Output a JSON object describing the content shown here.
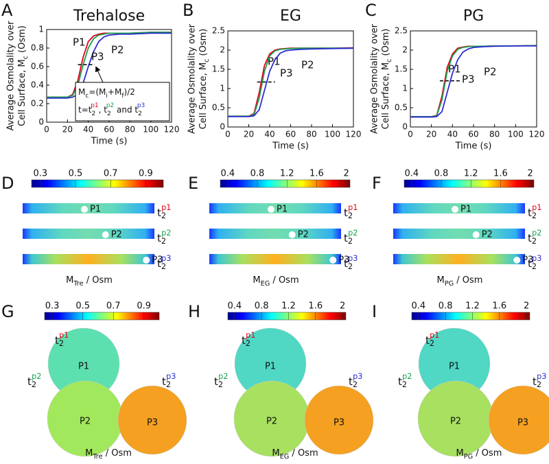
{
  "chart_data": [
    {
      "type": "line",
      "letter": "A",
      "title": "Trehalose",
      "y_label": [
        "Average Osmolality over",
        "Cell Surface, M",
        "c",
        " (Osm)"
      ],
      "x_label": "Time (s)",
      "x": [
        0,
        10,
        20,
        25,
        30,
        35,
        40,
        45,
        50,
        55,
        60,
        70,
        80,
        100,
        120
      ],
      "xlim": [
        0,
        120
      ],
      "xticks": [
        0,
        20,
        40,
        60,
        80,
        100,
        120
      ],
      "ylim": [
        0,
        1
      ],
      "yticks": [
        0,
        0.2,
        0.4,
        0.6,
        0.8,
        1
      ],
      "series": [
        {
          "name": "P1",
          "color": "#e2001a",
          "values": [
            0.27,
            0.27,
            0.27,
            0.3,
            0.45,
            0.7,
            0.87,
            0.93,
            0.95,
            0.96,
            0.96,
            0.96,
            0.96,
            0.97,
            0.97
          ]
        },
        {
          "name": "P2",
          "color": "#1aa050",
          "values": [
            0.27,
            0.27,
            0.27,
            0.29,
            0.4,
            0.62,
            0.8,
            0.9,
            0.94,
            0.95,
            0.96,
            0.96,
            0.96,
            0.97,
            0.97
          ]
        },
        {
          "name": "P3",
          "color": "#2b2bd0",
          "values": [
            0.26,
            0.26,
            0.26,
            0.27,
            0.3,
            0.42,
            0.6,
            0.76,
            0.87,
            0.92,
            0.94,
            0.95,
            0.95,
            0.96,
            0.96
          ]
        }
      ],
      "mid_line": {
        "x": [
          30,
          46
        ],
        "y": 0.62
      },
      "annotation": [
        [
          "M",
          "c",
          "=(M",
          "i",
          "+M",
          "f",
          ")/2"
        ],
        [
          "t=t",
          "2",
          "p1",
          ", t",
          "2",
          "p2",
          " and t",
          "2",
          "p3"
        ]
      ]
    },
    {
      "type": "line",
      "letter": "B",
      "title": "EG",
      "y_label": [
        "Average Osmolality over",
        "Cell Surface, M",
        "c",
        " (Osm)"
      ],
      "x_label": "Time (s)",
      "x": [
        0,
        10,
        20,
        25,
        30,
        35,
        40,
        45,
        50,
        55,
        60,
        70,
        80,
        100,
        120
      ],
      "xlim": [
        0,
        120
      ],
      "xticks": [
        0,
        20,
        40,
        60,
        80,
        100,
        120
      ],
      "ylim": [
        0,
        2.5
      ],
      "yticks": [
        0,
        0.5,
        1,
        1.5,
        2,
        2.5
      ],
      "series": [
        {
          "name": "P1",
          "color": "#e2001a",
          "values": [
            0.28,
            0.28,
            0.28,
            0.35,
            0.9,
            1.6,
            1.9,
            2.0,
            2.03,
            2.04,
            2.05,
            2.05,
            2.05,
            2.05,
            2.06
          ]
        },
        {
          "name": "P2",
          "color": "#1aa050",
          "values": [
            0.28,
            0.28,
            0.28,
            0.32,
            0.75,
            1.45,
            1.85,
            1.98,
            2.02,
            2.03,
            2.04,
            2.05,
            2.05,
            2.05,
            2.05
          ]
        },
        {
          "name": "P3",
          "color": "#2b2bd0",
          "values": [
            0.27,
            0.27,
            0.27,
            0.29,
            0.45,
            0.95,
            1.45,
            1.75,
            1.92,
            1.98,
            2.0,
            2.02,
            2.03,
            2.04,
            2.05
          ]
        }
      ],
      "mid_line": {
        "x": [
          28,
          45
        ],
        "y": 1.17
      }
    },
    {
      "type": "line",
      "letter": "C",
      "title": "PG",
      "y_label": [
        "Average Osmolality over",
        "Cell Surface, M",
        "c",
        " (Osm)"
      ],
      "x_label": "Time (s)",
      "x": [
        0,
        10,
        20,
        25,
        30,
        35,
        40,
        45,
        50,
        55,
        60,
        70,
        80,
        100,
        120
      ],
      "xlim": [
        0,
        120
      ],
      "xticks": [
        0,
        20,
        40,
        60,
        80,
        100,
        120
      ],
      "ylim": [
        0,
        2.5
      ],
      "yticks": [
        0,
        0.5,
        1,
        1.5,
        2,
        2.5
      ],
      "series": [
        {
          "name": "P1",
          "color": "#e2001a",
          "values": [
            0.27,
            0.27,
            0.27,
            0.3,
            0.8,
            1.55,
            1.9,
            2.05,
            2.08,
            2.1,
            2.1,
            2.1,
            2.11,
            2.11,
            2.12
          ]
        },
        {
          "name": "P2",
          "color": "#1aa050",
          "values": [
            0.27,
            0.27,
            0.27,
            0.29,
            0.7,
            1.45,
            1.85,
            2.02,
            2.07,
            2.09,
            2.1,
            2.1,
            2.11,
            2.11,
            2.12
          ]
        },
        {
          "name": "P3",
          "color": "#2b2bd0",
          "values": [
            0.26,
            0.26,
            0.26,
            0.27,
            0.4,
            0.9,
            1.4,
            1.75,
            1.95,
            2.03,
            2.07,
            2.09,
            2.1,
            2.11,
            2.11
          ]
        }
      ],
      "mid_line": {
        "x": [
          28,
          48
        ],
        "y": 1.2
      }
    }
  ],
  "strip_panels": [
    {
      "letter": "D",
      "colorbar": {
        "lim": [
          0.25,
          1.0
        ],
        "ticks": [
          0.3,
          0.5,
          0.7,
          0.9
        ]
      },
      "quantity": [
        "M",
        "Tre",
        " / Osm"
      ],
      "strips": [
        {
          "point": "P1",
          "time": [
            "t",
            "2",
            "p1"
          ]
        },
        {
          "point": "P2",
          "time": [
            "t",
            "2",
            "p2"
          ]
        },
        {
          "point": "P3",
          "time": [
            "t",
            "2",
            "p3"
          ]
        }
      ]
    },
    {
      "letter": "E",
      "colorbar": {
        "lim": [
          0.3,
          2.05
        ],
        "ticks": [
          0.4,
          0.8,
          1.2,
          1.6,
          2
        ]
      },
      "quantity": [
        "M",
        "EG",
        " / Osm"
      ],
      "strips": [
        {
          "point": "P1",
          "time": [
            "t",
            "2",
            "p1"
          ]
        },
        {
          "point": "P2",
          "time": [
            "t",
            "2",
            "p2"
          ]
        },
        {
          "point": "P3",
          "time": [
            "t",
            "2",
            "p3"
          ]
        }
      ]
    },
    {
      "letter": "F",
      "colorbar": {
        "lim": [
          0.3,
          2.05
        ],
        "ticks": [
          0.4,
          0.8,
          1.2,
          1.6,
          2
        ]
      },
      "quantity": [
        "M",
        "PG",
        " / Osm"
      ],
      "strips": [
        {
          "point": "P1",
          "time": [
            "t",
            "2",
            "p1"
          ]
        },
        {
          "point": "P2",
          "time": [
            "t",
            "2",
            "p2"
          ]
        },
        {
          "point": "P3",
          "time": [
            "t",
            "2",
            "p3"
          ]
        }
      ]
    }
  ],
  "cell_panels": [
    {
      "letter": "G",
      "colorbar": {
        "lim": [
          0.25,
          1.0
        ],
        "ticks": [
          0.3,
          0.5,
          0.7,
          0.9
        ]
      },
      "quantity": [
        "M",
        "Tre",
        " / Osm"
      ],
      "cells": [
        {
          "label": "P1",
          "color": "#5ce0b0",
          "time": [
            "t",
            "2",
            "p1"
          ]
        },
        {
          "label": "P2",
          "color": "#a2e85c",
          "time": [
            "t",
            "2",
            "p2"
          ]
        },
        {
          "label": "P3",
          "color": "#f5a020",
          "time": [
            "t",
            "2",
            "p3"
          ]
        }
      ]
    },
    {
      "letter": "H",
      "colorbar": {
        "lim": [
          0.3,
          2.05
        ],
        "ticks": [
          0.4,
          0.8,
          1.2,
          1.6,
          2
        ]
      },
      "quantity": [
        "M",
        "EG",
        " / Osm"
      ],
      "cells": [
        {
          "label": "P1",
          "color": "#50d8c4",
          "time": [
            "t",
            "2",
            "p1"
          ]
        },
        {
          "label": "P2",
          "color": "#a8e060",
          "time": [
            "t",
            "2",
            "p2"
          ]
        },
        {
          "label": "P3",
          "color": "#f5a020",
          "time": [
            "t",
            "2",
            "p3"
          ]
        }
      ]
    },
    {
      "letter": "I",
      "colorbar": {
        "lim": [
          0.3,
          2.05
        ],
        "ticks": [
          0.4,
          0.8,
          1.2,
          1.6,
          2
        ]
      },
      "quantity": [
        "M",
        "PG",
        " / Osm"
      ],
      "cells": [
        {
          "label": "P1",
          "color": "#50d8c4",
          "time": [
            "t",
            "2",
            "p1"
          ]
        },
        {
          "label": "P2",
          "color": "#a8e060",
          "time": [
            "t",
            "2",
            "p2"
          ]
        },
        {
          "label": "P3",
          "color": "#f5a020",
          "time": [
            "t",
            "2",
            "p3"
          ]
        }
      ]
    }
  ]
}
